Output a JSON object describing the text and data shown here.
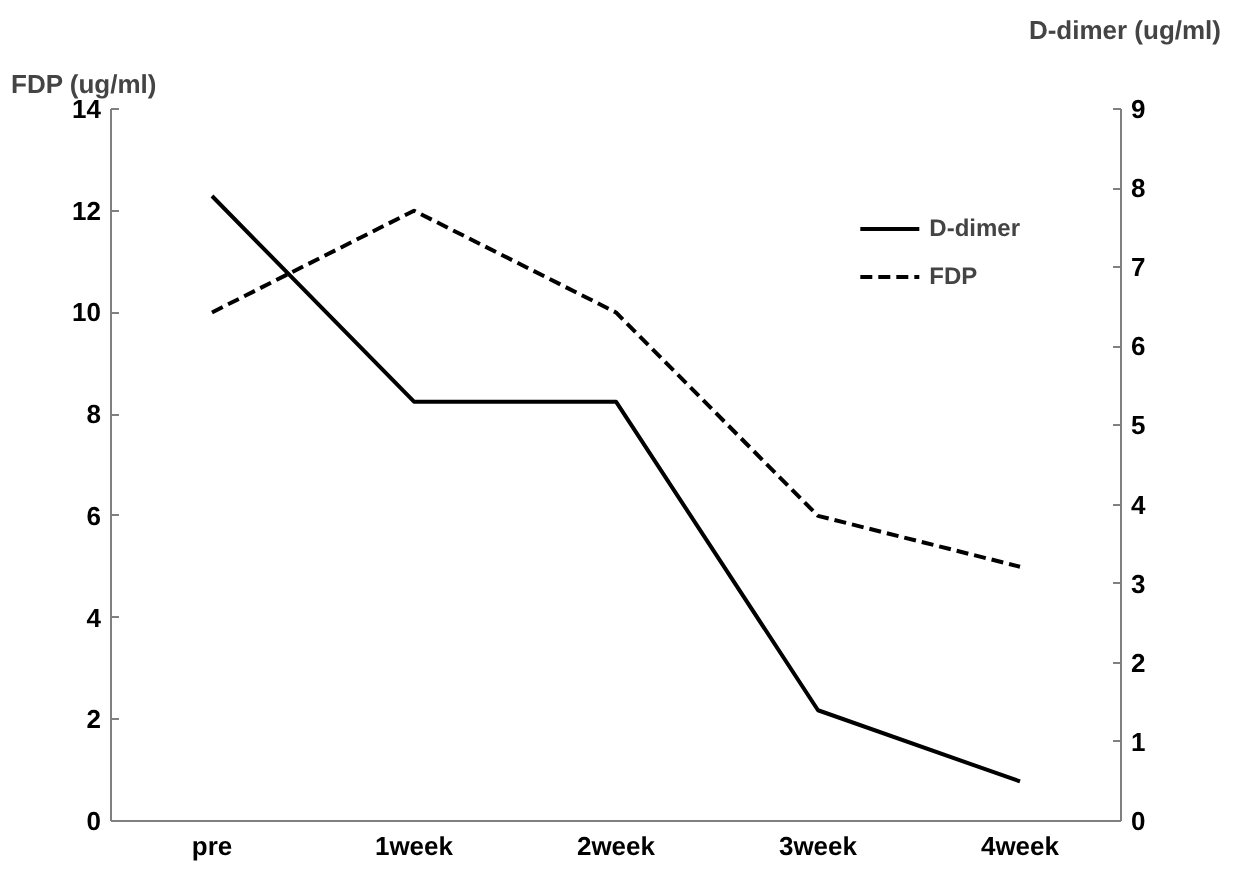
{
  "chart_data": {
    "type": "line",
    "categories": [
      "pre",
      "1week",
      "2week",
      "3week",
      "4week"
    ],
    "ylabel": "FDP (ug/ml)",
    "y2label": "D-dimer (ug/ml)",
    "ylim": [
      0,
      14
    ],
    "yticks": [
      0,
      2,
      4,
      6,
      8,
      10,
      12,
      14
    ],
    "y2lim": [
      0,
      9
    ],
    "y2ticks": [
      0,
      1,
      2,
      3,
      4,
      5,
      6,
      7,
      8,
      9
    ],
    "series": [
      {
        "name": "D-dimer",
        "color": "#000000",
        "axis": "y2",
        "line_style": "solid",
        "values": [
          7.9,
          5.3,
          5.3,
          1.4,
          0.5
        ]
      },
      {
        "name": "FDP",
        "color": "#000000",
        "line_style": "dashed",
        "values": [
          10,
          12,
          10,
          6,
          5
        ]
      }
    ],
    "grid": false,
    "legend": "top right",
    "marker": "none"
  }
}
